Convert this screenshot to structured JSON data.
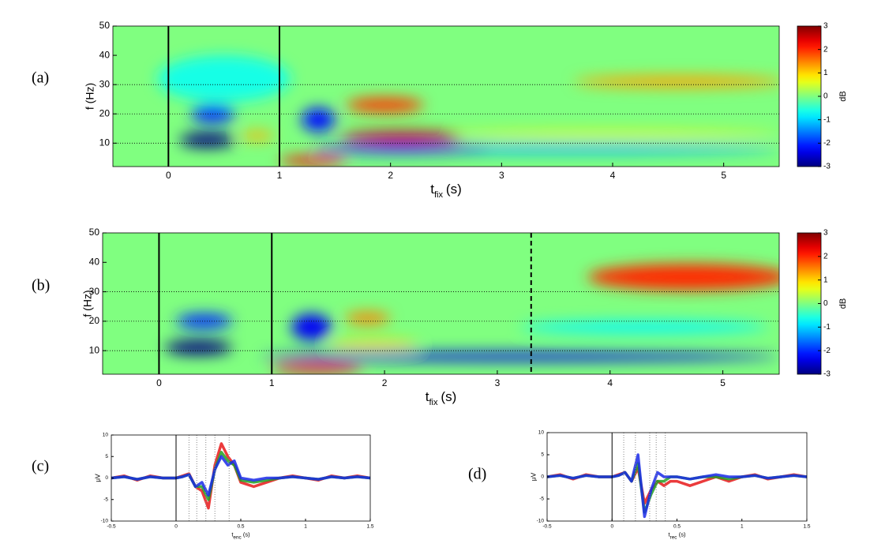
{
  "chart_data": [
    {
      "type": "heatmap",
      "panel_label": "(a)",
      "ylabel": "f (Hz)",
      "xlabel_main": "t",
      "xlabel_sub": "fix",
      "xlabel_unit": "(s)",
      "xlim": [
        -0.5,
        5.5
      ],
      "xticks": [
        0,
        1,
        2,
        3,
        4,
        5
      ],
      "ylim": [
        2,
        50
      ],
      "yticks": [
        10,
        20,
        30,
        40,
        50
      ],
      "hlines": [
        10,
        20,
        30
      ],
      "markers": [
        {
          "x": 0,
          "style": "solid"
        },
        {
          "x": 1,
          "style": "solid"
        }
      ],
      "clim": [
        -3,
        3
      ],
      "cticks": [
        -3,
        -2,
        -1,
        0,
        1,
        2,
        3
      ],
      "clabel": "dB",
      "blobs": [
        {
          "t": 0.5,
          "f": 32,
          "dt": 1.2,
          "df": 16,
          "value": -0.6
        },
        {
          "t": 3.6,
          "f": 8,
          "dt": 3.8,
          "df": 3,
          "value": -1.2
        },
        {
          "t": 2.1,
          "f": 8,
          "dt": 1.6,
          "df": 3,
          "value": -2
        },
        {
          "t": 4.6,
          "f": 31,
          "dt": 1.9,
          "df": 4,
          "value": 1.3
        },
        {
          "t": 4.0,
          "f": 13,
          "dt": 3.0,
          "df": 2,
          "value": 0.8
        },
        {
          "t": 0.8,
          "f": 12.5,
          "dt": 0.3,
          "df": 3,
          "value": 1.2
        },
        {
          "t": 0.35,
          "f": 11,
          "dt": 0.5,
          "df": 5,
          "value": -3
        },
        {
          "t": 0.4,
          "f": 20,
          "dt": 0.4,
          "df": 6,
          "value": -2
        },
        {
          "t": 1.35,
          "f": 18,
          "dt": 0.3,
          "df": 8,
          "value": -2.2
        },
        {
          "t": 1.3,
          "f": 4,
          "dt": 0.6,
          "df": 3,
          "value": 2.2
        },
        {
          "t": 2.1,
          "f": 12,
          "dt": 1.1,
          "df": 4,
          "value": 2.6
        },
        {
          "t": 1.95,
          "f": 23,
          "dt": 0.7,
          "df": 5,
          "value": 1.9
        }
      ]
    },
    {
      "type": "heatmap",
      "panel_label": "(b)",
      "ylabel": "f (Hz)",
      "xlabel_main": "t",
      "xlabel_sub": "fix",
      "xlabel_unit": "(s)",
      "xlim": [
        -0.5,
        5.5
      ],
      "xticks": [
        0,
        1,
        2,
        3,
        4,
        5
      ],
      "ylim": [
        2,
        50
      ],
      "yticks": [
        10,
        20,
        30,
        40,
        50
      ],
      "hlines": [
        10,
        20,
        30
      ],
      "markers": [
        {
          "x": 0,
          "style": "solid"
        },
        {
          "x": 1,
          "style": "solid"
        },
        {
          "x": 3.3,
          "style": "dashed"
        }
      ],
      "clim": [
        -3,
        3
      ],
      "cticks": [
        -3,
        -2,
        -1,
        0,
        1,
        2,
        3
      ],
      "clabel": "dB",
      "blobs": [
        {
          "t": 4.3,
          "f": 18,
          "dt": 2.2,
          "df": 4,
          "value": -0.8
        },
        {
          "t": 4.7,
          "f": 35,
          "dt": 1.8,
          "df": 9,
          "value": 2
        },
        {
          "t": 3.2,
          "f": 8,
          "dt": 4.6,
          "df": 3,
          "value": -2.4
        },
        {
          "t": 1.9,
          "f": 12,
          "dt": 0.8,
          "df": 3,
          "value": 1
        },
        {
          "t": 0.35,
          "f": 11,
          "dt": 0.6,
          "df": 5,
          "value": -3
        },
        {
          "t": 0.4,
          "f": 20,
          "dt": 0.5,
          "df": 5,
          "value": -2
        },
        {
          "t": 1.35,
          "f": 18,
          "dt": 0.35,
          "df": 9,
          "value": -2.3
        },
        {
          "t": 1.4,
          "f": 4,
          "dt": 0.8,
          "df": 3,
          "value": 2.3
        },
        {
          "t": 1.85,
          "f": 21,
          "dt": 0.4,
          "df": 4,
          "value": 1.5
        }
      ]
    },
    {
      "type": "line",
      "panel_label": "(c)",
      "ylabel": "μV",
      "xlabel_main": "t",
      "xlabel_sub": "enc",
      "xlabel_unit": "(s)",
      "xlim": [
        -0.5,
        1.5
      ],
      "xticks": [
        -0.5,
        0,
        0.5,
        1,
        1.5
      ],
      "ylim": [
        -10,
        10
      ],
      "yticks": [
        -10,
        -5,
        0,
        5,
        10
      ],
      "markers": [
        {
          "x": 0,
          "style": "solid"
        },
        {
          "x": 0.1,
          "style": "dotted"
        },
        {
          "x": 0.16,
          "style": "dotted"
        },
        {
          "x": 0.23,
          "style": "dotted"
        },
        {
          "x": 0.3,
          "style": "dotted"
        },
        {
          "x": 0.41,
          "style": "dotted"
        }
      ],
      "x": [
        -0.5,
        -0.4,
        -0.3,
        -0.2,
        -0.1,
        0,
        0.05,
        0.1,
        0.15,
        0.2,
        0.25,
        0.3,
        0.35,
        0.4,
        0.45,
        0.5,
        0.6,
        0.7,
        0.8,
        0.9,
        1,
        1.1,
        1.2,
        1.3,
        1.4,
        1.5
      ],
      "series": [
        {
          "color": "#e8191a",
          "values": [
            0,
            0.5,
            -0.5,
            0.5,
            0,
            0,
            0.5,
            1,
            -2,
            -3,
            -7,
            3,
            8,
            5,
            3,
            -1,
            -2,
            -1,
            0,
            0.5,
            0,
            -0.5,
            0.5,
            0,
            0.5,
            0
          ]
        },
        {
          "color": "#22a022",
          "values": [
            0,
            0.3,
            -0.3,
            0.3,
            0,
            0,
            0.3,
            0.8,
            -2,
            -2,
            -5,
            2,
            6,
            4,
            3,
            -0.5,
            -1,
            -0.5,
            0,
            0.3,
            0,
            -0.3,
            0.3,
            0,
            0.3,
            0
          ]
        },
        {
          "color": "#1a2ae8",
          "values": [
            0,
            0.3,
            -0.3,
            0.3,
            0,
            0,
            0.3,
            0.8,
            -2,
            -1,
            -4,
            2,
            5,
            3,
            4,
            0,
            -0.5,
            0,
            0,
            0.3,
            0,
            -0.3,
            0.3,
            0,
            0.3,
            0
          ]
        }
      ]
    },
    {
      "type": "line",
      "panel_label": "(d)",
      "ylabel": "μV",
      "xlabel_main": "t",
      "xlabel_sub": "rec",
      "xlabel_unit": "(s)",
      "xlim": [
        -0.5,
        1.5
      ],
      "xticks": [
        -0.5,
        0,
        0.5,
        1,
        1.5
      ],
      "ylim": [
        -10,
        10
      ],
      "yticks": [
        -10,
        -5,
        0,
        5,
        10
      ],
      "markers": [
        {
          "x": 0,
          "style": "solid"
        },
        {
          "x": 0.09,
          "style": "dotted"
        },
        {
          "x": 0.18,
          "style": "dotted"
        },
        {
          "x": 0.29,
          "style": "dotted"
        },
        {
          "x": 0.34,
          "style": "dotted"
        },
        {
          "x": 0.41,
          "style": "dotted"
        }
      ],
      "x": [
        -0.5,
        -0.4,
        -0.3,
        -0.2,
        -0.1,
        0,
        0.05,
        0.1,
        0.15,
        0.2,
        0.25,
        0.3,
        0.35,
        0.4,
        0.45,
        0.5,
        0.6,
        0.7,
        0.8,
        0.9,
        1,
        1.1,
        1.2,
        1.3,
        1.4,
        1.5
      ],
      "series": [
        {
          "color": "#e8191a",
          "values": [
            0,
            0.5,
            -0.5,
            0.5,
            0,
            0,
            0.5,
            1,
            -1,
            2,
            -6,
            -3,
            -1,
            -2,
            -1,
            -1,
            -2,
            -1,
            0,
            -1,
            0,
            0.5,
            -0.5,
            0,
            0.5,
            0
          ]
        },
        {
          "color": "#22a022",
          "values": [
            0,
            0.3,
            -0.3,
            0.3,
            0,
            0,
            0.3,
            1,
            -1,
            3,
            -8,
            -4,
            -1,
            -1,
            0,
            0,
            -0.5,
            0,
            0,
            -0.5,
            0,
            0.3,
            -0.3,
            0,
            0.3,
            0
          ]
        },
        {
          "color": "#1a2ae8",
          "values": [
            0,
            0.3,
            -0.3,
            0.3,
            0,
            0,
            0.3,
            1,
            -1,
            5,
            -9,
            -3,
            1,
            0,
            0,
            0,
            -0.5,
            0,
            0.5,
            0,
            0,
            0.3,
            -0.3,
            0,
            0.3,
            0
          ]
        }
      ]
    }
  ]
}
